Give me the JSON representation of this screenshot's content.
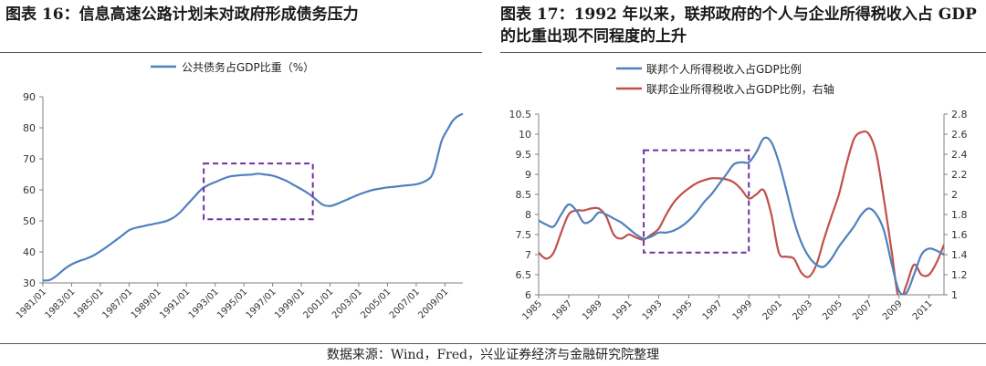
{
  "captions": {
    "left": "图表 16：信息高速公路计划未对政府形成债务压力",
    "right": "图表 17：1992 年以来，联邦政府的个人与企业所得税收入占 GDP 的比重出现不同程度的上升"
  },
  "source": "数据来源：Wind，Fred，兴业证券经济与金融研究院整理",
  "colors": {
    "blue": "#4f81bd",
    "red": "#c0504d",
    "dash": "#7030a0",
    "axis": "#808080"
  },
  "chart_data": [
    {
      "type": "line",
      "legend": [
        "公共债务占GDP比重（%）"
      ],
      "legend_position": "top-center",
      "grid": false,
      "x_tick_labels": [
        "1981/01",
        "1983/01",
        "1985/01",
        "1987/01",
        "1989/01",
        "1991/01",
        "1993/01",
        "1995/01",
        "1997/01",
        "1999/01",
        "2001/01",
        "2003/01",
        "2005/01",
        "2007/01",
        "2009/01"
      ],
      "xlim": [
        1981.0,
        2010.25
      ],
      "ylim": [
        30,
        90
      ],
      "y_ticks": [
        30,
        40,
        50,
        60,
        70,
        80,
        90
      ],
      "series": [
        {
          "name": "公共债务占GDP比重（%）",
          "x": [
            1981.0,
            1981.5,
            1982.0,
            1982.5,
            1983.0,
            1983.5,
            1984.0,
            1984.5,
            1985.0,
            1985.5,
            1986.0,
            1986.5,
            1987.0,
            1987.5,
            1988.0,
            1988.5,
            1989.0,
            1989.5,
            1990.0,
            1990.5,
            1991.0,
            1991.5,
            1992.0,
            1992.5,
            1993.0,
            1993.5,
            1994.0,
            1994.5,
            1995.0,
            1995.5,
            1996.0,
            1996.5,
            1997.0,
            1997.5,
            1998.0,
            1998.5,
            1999.0,
            1999.5,
            2000.0,
            2000.5,
            2001.0,
            2001.5,
            2002.0,
            2002.5,
            2003.0,
            2003.5,
            2004.0,
            2004.5,
            2005.0,
            2005.5,
            2006.0,
            2006.5,
            2007.0,
            2007.5,
            2008.0,
            2008.25,
            2008.5,
            2008.75,
            2009.0,
            2009.25,
            2009.5,
            2009.75,
            2010.0,
            2010.25
          ],
          "values": [
            30.8,
            31.0,
            32.5,
            34.5,
            36.0,
            37.0,
            37.8,
            38.8,
            40.2,
            41.8,
            43.5,
            45.2,
            47.0,
            47.8,
            48.3,
            48.8,
            49.3,
            49.8,
            50.8,
            52.5,
            55.0,
            57.5,
            60.0,
            61.5,
            62.5,
            63.5,
            64.3,
            64.6,
            64.8,
            64.9,
            65.2,
            64.9,
            64.6,
            63.8,
            62.8,
            61.5,
            60.2,
            58.8,
            57.0,
            55.2,
            54.8,
            55.5,
            56.5,
            57.5,
            58.5,
            59.3,
            60.0,
            60.4,
            60.8,
            61.0,
            61.3,
            61.5,
            61.8,
            62.5,
            64.0,
            66.5,
            71.0,
            75.5,
            78.0,
            80.0,
            82.0,
            83.2,
            84.0,
            84.5
          ]
        }
      ],
      "highlight_box": {
        "x_range": [
          1992.2,
          1999.8
        ],
        "y_range": [
          50.5,
          68.5
        ]
      }
    },
    {
      "type": "line",
      "legend": [
        "联邦个人所得税收入占GDP比例",
        "联邦企业所得税收入占GDP比例，右轴"
      ],
      "legend_position": "top-left",
      "grid": false,
      "x_tick_labels": [
        "1985",
        "1987",
        "1989",
        "1991",
        "1993",
        "1995",
        "1997",
        "1999",
        "2001",
        "2003",
        "2005",
        "2007",
        "2009",
        "2011"
      ],
      "xlim": [
        1985,
        2012
      ],
      "ylim": [
        6,
        10.5
      ],
      "y_ticks": [
        6,
        6.5,
        7,
        7.5,
        8,
        8.5,
        9,
        9.5,
        10,
        10.5
      ],
      "ylim_right": [
        1,
        2.8
      ],
      "y_ticks_right": [
        1,
        1.2,
        1.4,
        1.6,
        1.8,
        2,
        2.2,
        2.4,
        2.6,
        2.8
      ],
      "series": [
        {
          "name": "联邦个人所得税收入占GDP比例",
          "axis": "left",
          "x": [
            1985,
            1985.5,
            1986,
            1986.5,
            1987,
            1987.5,
            1988,
            1988.5,
            1989,
            1989.5,
            1990,
            1990.5,
            1991,
            1991.5,
            1992,
            1992.5,
            1993,
            1993.5,
            1994,
            1994.5,
            1995,
            1995.5,
            1996,
            1996.5,
            1997,
            1997.5,
            1998,
            1998.5,
            1999,
            1999.5,
            2000,
            2000.5,
            2001,
            2001.5,
            2002,
            2002.5,
            2003,
            2003.5,
            2004,
            2004.5,
            2005,
            2005.5,
            2006,
            2006.5,
            2007,
            2007.5,
            2008,
            2008.5,
            2009,
            2009.5,
            2010,
            2010.5,
            2011,
            2011.5,
            2012
          ],
          "values": [
            7.85,
            7.75,
            7.7,
            8.0,
            8.25,
            8.1,
            7.8,
            7.85,
            8.05,
            8.0,
            7.9,
            7.8,
            7.65,
            7.5,
            7.4,
            7.45,
            7.55,
            7.55,
            7.6,
            7.7,
            7.85,
            8.05,
            8.3,
            8.5,
            8.75,
            9.0,
            9.25,
            9.3,
            9.3,
            9.55,
            9.9,
            9.8,
            9.3,
            8.6,
            7.85,
            7.3,
            6.95,
            6.75,
            6.7,
            6.9,
            7.2,
            7.45,
            7.7,
            8.0,
            8.15,
            8.0,
            7.6,
            6.8,
            6.1,
            6.05,
            6.5,
            7.0,
            7.15,
            7.1,
            7.0
          ]
        },
        {
          "name": "联邦企业所得税收入占GDP比例，右轴",
          "axis": "right",
          "x": [
            1985,
            1985.5,
            1986,
            1986.5,
            1987,
            1987.5,
            1988,
            1988.5,
            1989,
            1989.5,
            1990,
            1990.5,
            1991,
            1991.5,
            1992,
            1992.5,
            1993,
            1993.5,
            1994,
            1994.5,
            1995,
            1995.5,
            1996,
            1996.5,
            1997,
            1997.5,
            1998,
            1998.5,
            1999,
            1999.5,
            2000,
            2000.5,
            2001,
            2001.5,
            2002,
            2002.5,
            2003,
            2003.5,
            2004,
            2004.5,
            2005,
            2005.5,
            2006,
            2006.5,
            2007,
            2007.5,
            2008,
            2008.5,
            2009,
            2009.5,
            2010,
            2010.5,
            2011,
            2011.5,
            2012
          ],
          "values": [
            1.42,
            1.36,
            1.42,
            1.62,
            1.8,
            1.84,
            1.84,
            1.86,
            1.86,
            1.78,
            1.6,
            1.56,
            1.6,
            1.57,
            1.55,
            1.6,
            1.66,
            1.8,
            1.92,
            2.0,
            2.06,
            2.11,
            2.14,
            2.16,
            2.16,
            2.15,
            2.12,
            2.05,
            1.96,
            2.0,
            2.04,
            1.8,
            1.42,
            1.38,
            1.36,
            1.22,
            1.18,
            1.3,
            1.55,
            1.78,
            2.0,
            2.3,
            2.55,
            2.62,
            2.6,
            2.4,
            1.95,
            1.45,
            0.95,
            1.1,
            1.3,
            1.2,
            1.2,
            1.32,
            1.5
          ]
        }
      ],
      "highlight_box": {
        "x_range": [
          1992.0,
          1999.0
        ],
        "y_range": [
          7.05,
          9.6
        ]
      }
    }
  ]
}
